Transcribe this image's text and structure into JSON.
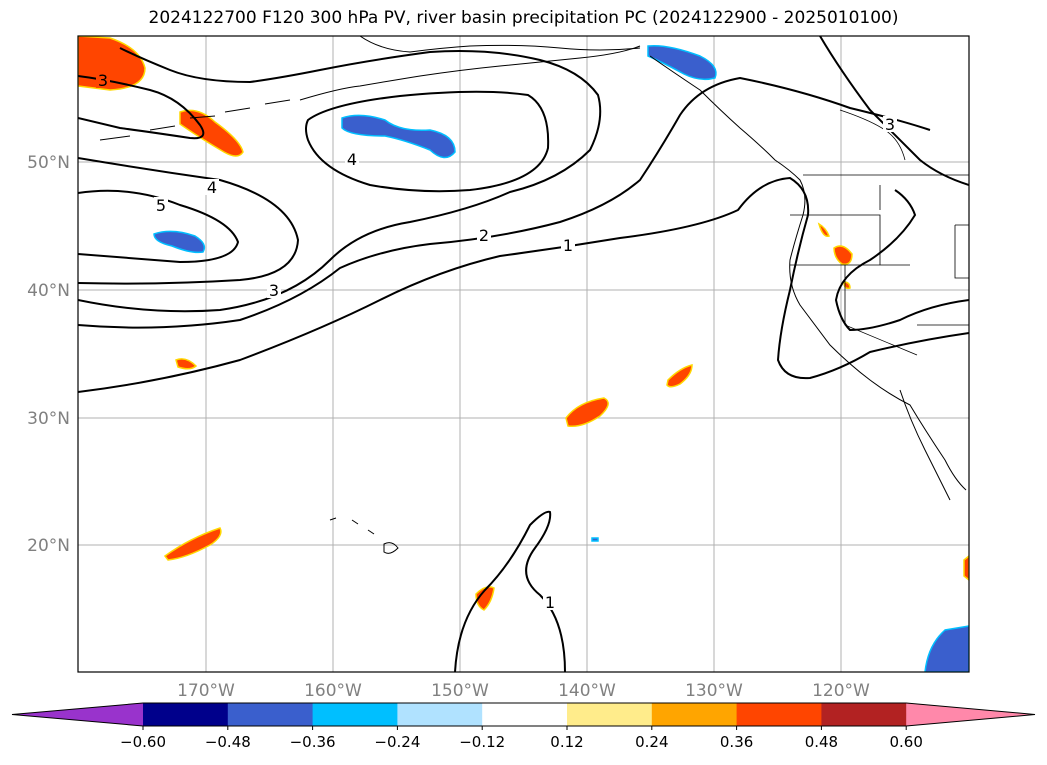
{
  "title": "2024122700 F120 300 hPa PV, river basin precipitation PC (2024122900 - 2025010100)",
  "map": {
    "lon_labels": [
      "170°W",
      "160°W",
      "150°W",
      "140°W",
      "130°W",
      "120°W"
    ],
    "lat_labels": [
      "50°N",
      "40°N",
      "30°N",
      "20°N"
    ],
    "contour_labels": [
      "3",
      "5",
      "4",
      "4",
      "3",
      "2",
      "1",
      "1",
      "3"
    ]
  },
  "colorbar": {
    "ticks": [
      "−0.60",
      "−0.48",
      "−0.36",
      "−0.24",
      "−0.12",
      "0.12",
      "0.24",
      "0.36",
      "0.48",
      "0.60"
    ],
    "colors": [
      "#9933cc",
      "#00008b",
      "#3a5fcd",
      "#00bfff",
      "#b0e2ff",
      "#ffffff",
      "#ffec8b",
      "#ffa500",
      "#ff4500",
      "#b22222",
      "#ff88aa"
    ]
  }
}
